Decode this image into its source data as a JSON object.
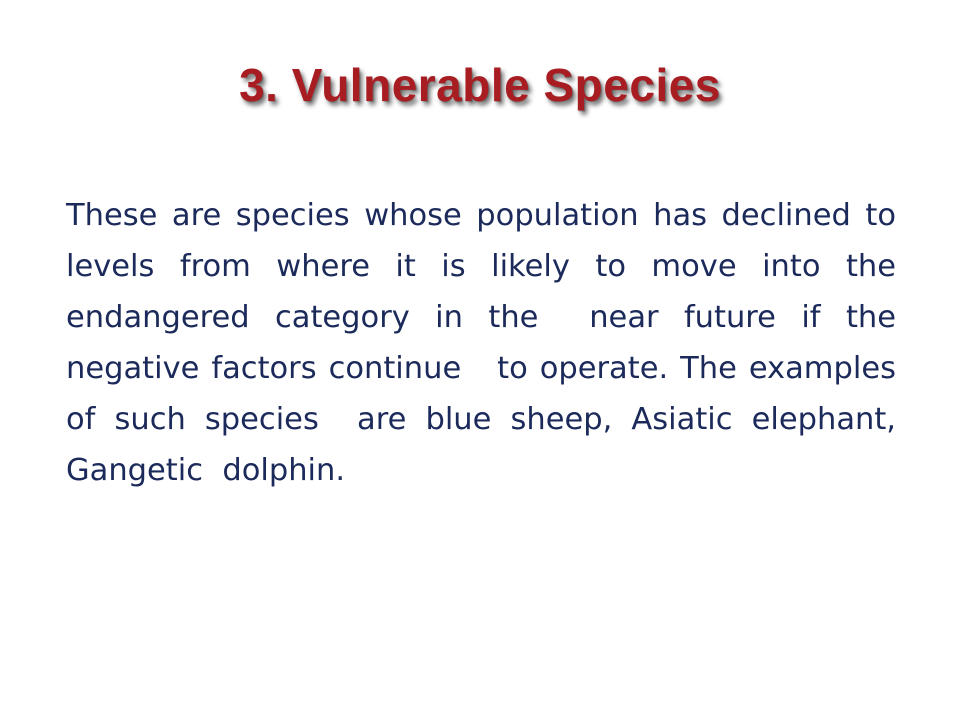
{
  "slide": {
    "title": "3. Vulnerable Species",
    "body": "These are species whose population has declined to levels from where it is likely to move into the endangered category in the  near future if the negative factors continue   to operate. The examples of such species  are blue sheep, Asiatic elephant, Gangetic  dolphin."
  },
  "colors": {
    "title": "#a81d22",
    "body_text": "#1b2a5a",
    "background": "#ffffff"
  }
}
